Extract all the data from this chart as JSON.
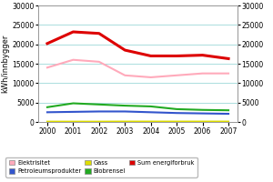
{
  "years": [
    2000,
    2001,
    2002,
    2003,
    2004,
    2005,
    2006,
    2007
  ],
  "elektrisitet": [
    14000,
    16000,
    15500,
    12000,
    11500,
    12000,
    12500,
    12500
  ],
  "petroleumsprodukter": [
    2500,
    2600,
    2700,
    2700,
    2500,
    2300,
    2200,
    2100
  ],
  "gass": [
    80,
    80,
    80,
    100,
    100,
    100,
    100,
    100
  ],
  "biobrensel": [
    3800,
    4800,
    4500,
    4200,
    4000,
    3300,
    3100,
    3000
  ],
  "sum_energiforbruk": [
    20200,
    23200,
    22800,
    18500,
    17000,
    17000,
    17200,
    16300
  ],
  "colors": {
    "elektrisitet": "#ffaabb",
    "petroleumsprodukter": "#3355cc",
    "gass": "#dddd00",
    "biobrensel": "#22aa22",
    "sum_energiforbruk": "#dd0000"
  },
  "ylim": [
    0,
    30000
  ],
  "yticks": [
    0,
    5000,
    10000,
    15000,
    20000,
    25000,
    30000
  ],
  "ylabel": "kWh/innbygger",
  "background_color": "#ffffff",
  "grid_color": "#aadddd",
  "legend_labels": {
    "elektrisitet": "Elektrisitet",
    "petroleumsprodukter": "Petroleumsprodukter",
    "gass": "Gass",
    "biobrensel": "Biobrensel",
    "sum_energiforbruk": "Sum energiforbruk"
  },
  "line_widths": {
    "elektrisitet": 1.5,
    "petroleumsprodukter": 1.5,
    "gass": 1.5,
    "biobrensel": 1.5,
    "sum_energiforbruk": 2.2
  }
}
